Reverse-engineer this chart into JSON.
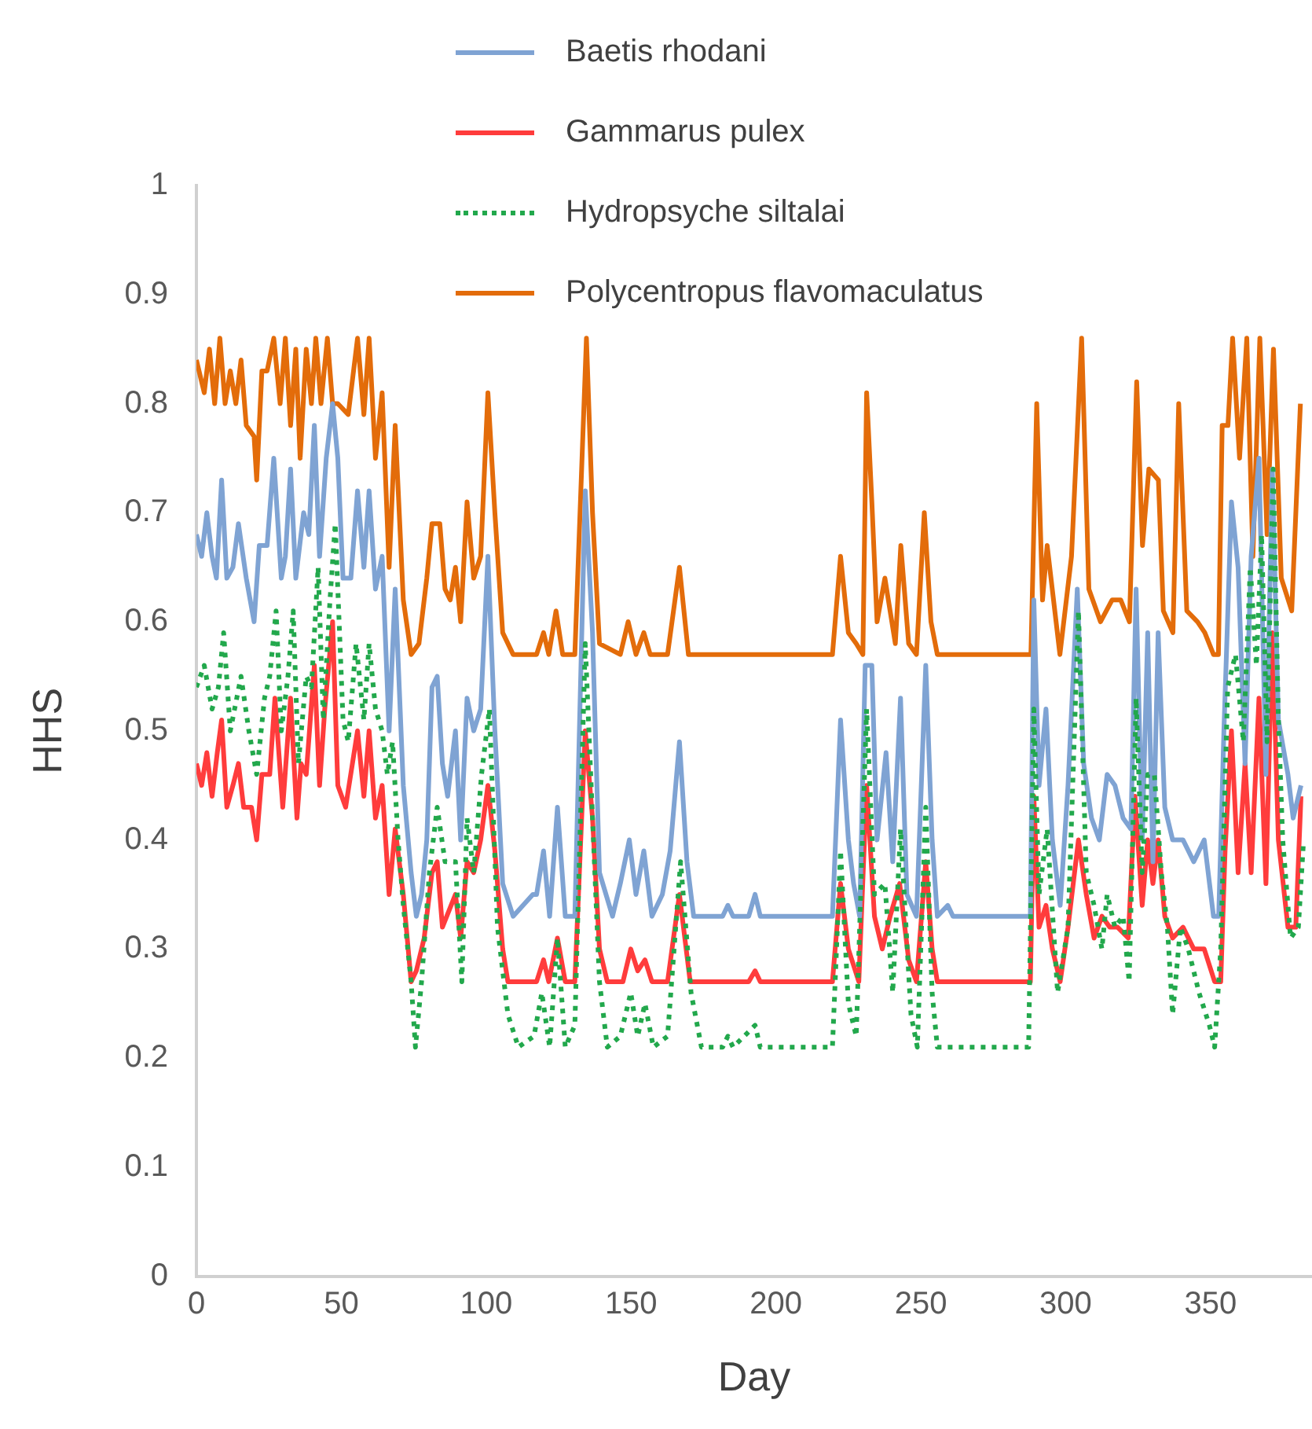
{
  "chart_data": {
    "type": "line",
    "xlabel": "Day",
    "ylabel": "HHS",
    "xlim": [
      0,
      385
    ],
    "xticks": [
      0,
      50,
      100,
      150,
      200,
      250,
      300,
      350
    ],
    "ylim": [
      0,
      1
    ],
    "yticks": [
      0,
      0.1,
      0.2,
      0.3,
      0.4,
      0.5,
      0.6,
      0.7,
      0.8,
      0.9,
      1
    ],
    "grid": false,
    "legend": "top",
    "marker": "none",
    "series": [
      {
        "name": "Baetis rhodani",
        "color": "#7fa3d3",
        "line_style": "solid",
        "x": [
          0,
          1.8,
          3.6,
          5.4,
          6.9,
          8.7,
          10.5,
          12.6,
          14.5,
          17.2,
          19.9,
          21.7,
          24.4,
          26.7,
          29.3,
          30.7,
          32.5,
          34.3,
          37,
          38.8,
          40.7,
          42.5,
          44.8,
          47,
          48.8,
          50.6,
          53.3,
          55.6,
          57.8,
          59.6,
          61.8,
          64.1,
          66.5,
          68.6,
          71.4,
          74.1,
          75.9,
          77.7,
          79.5,
          81.3,
          83.1,
          84.9,
          86.7,
          89.4,
          91.2,
          93.4,
          95.7,
          98.1,
          100.6,
          103,
          105.7,
          109.3,
          116.1,
          117.4,
          119.8,
          121.9,
          124.6,
          127.3,
          130.6,
          134.2,
          136.7,
          139.1,
          143.6,
          146.3,
          149.4,
          151.7,
          154.4,
          157.2,
          160.8,
          163.5,
          166.7,
          169.3,
          171.6,
          181.6,
          183.4,
          185.2,
          187,
          190.6,
          192.8,
          194.6,
          219.5,
          222.3,
          225,
          226.8,
          228.9,
          230.8,
          233.1,
          234.9,
          238,
          240.3,
          243,
          245.2,
          248.5,
          251.7,
          253.9,
          255.7,
          259.3,
          261.1,
          287.8,
          289,
          290.8,
          293.2,
          295.4,
          298.1,
          300.8,
          304,
          306.2,
          308.9,
          311.6,
          314.3,
          317,
          319.8,
          322.5,
          324.3,
          326.4,
          328.3,
          330.1,
          331.9,
          334.2,
          336.9,
          340.5,
          344.2,
          347.8,
          351,
          352.8,
          354.6,
          357.2,
          359.5,
          361.9,
          364,
          366.7,
          369.1,
          371.3,
          373.4,
          376.7,
          378.5,
          381.2
        ],
        "values": [
          0.68,
          0.66,
          0.7,
          0.66,
          0.64,
          0.73,
          0.64,
          0.65,
          0.69,
          0.64,
          0.6,
          0.67,
          0.67,
          0.75,
          0.64,
          0.66,
          0.74,
          0.64,
          0.7,
          0.68,
          0.78,
          0.66,
          0.75,
          0.8,
          0.75,
          0.64,
          0.64,
          0.72,
          0.65,
          0.72,
          0.63,
          0.66,
          0.5,
          0.63,
          0.45,
          0.37,
          0.33,
          0.35,
          0.4,
          0.54,
          0.55,
          0.47,
          0.44,
          0.5,
          0.4,
          0.53,
          0.5,
          0.52,
          0.66,
          0.5,
          0.36,
          0.33,
          0.35,
          0.35,
          0.39,
          0.33,
          0.43,
          0.33,
          0.33,
          0.72,
          0.59,
          0.37,
          0.33,
          0.36,
          0.4,
          0.35,
          0.39,
          0.33,
          0.35,
          0.39,
          0.49,
          0.38,
          0.33,
          0.33,
          0.34,
          0.33,
          0.33,
          0.33,
          0.35,
          0.33,
          0.33,
          0.51,
          0.4,
          0.36,
          0.33,
          0.56,
          0.56,
          0.4,
          0.48,
          0.38,
          0.53,
          0.35,
          0.33,
          0.56,
          0.4,
          0.33,
          0.34,
          0.33,
          0.33,
          0.62,
          0.45,
          0.52,
          0.4,
          0.34,
          0.45,
          0.63,
          0.47,
          0.42,
          0.4,
          0.46,
          0.45,
          0.42,
          0.41,
          0.63,
          0.4,
          0.59,
          0.38,
          0.59,
          0.43,
          0.4,
          0.4,
          0.38,
          0.4,
          0.33,
          0.33,
          0.5,
          0.71,
          0.65,
          0.47,
          0.66,
          0.75,
          0.46,
          0.74,
          0.51,
          0.46,
          0.42,
          0.45
        ]
      },
      {
        "name": "Gammarus pulex",
        "color": "#ff3c3c",
        "line_style": "solid",
        "x": [
          0,
          1.8,
          3.6,
          5.4,
          7.2,
          8.7,
          10.5,
          12.6,
          14.5,
          16.3,
          19,
          20.8,
          22.6,
          25.3,
          27.1,
          29.8,
          32.5,
          34.7,
          36.1,
          37.9,
          40.7,
          42.5,
          44.3,
          47,
          48.8,
          51.5,
          55.6,
          57.8,
          59.6,
          61.8,
          64.1,
          66.5,
          68.6,
          71.4,
          74.1,
          75.9,
          78.6,
          81.3,
          83.1,
          84.9,
          89.4,
          91.2,
          93.4,
          95.7,
          98.1,
          100.6,
          103,
          105.7,
          107.5,
          117.4,
          119.8,
          121.6,
          124.6,
          127.3,
          130.6,
          134.2,
          136.7,
          139.1,
          141.8,
          147.2,
          149.9,
          152.3,
          154.8,
          157.2,
          162.6,
          166.7,
          170.4,
          187,
          190.6,
          192.8,
          194.6,
          219.5,
          222.3,
          225,
          228.6,
          231.3,
          234,
          236.7,
          239.4,
          242.7,
          245.8,
          248.5,
          251.7,
          253.9,
          255.7,
          287.8,
          289,
          290.8,
          293.2,
          295.4,
          298.1,
          300.8,
          304.4,
          307.1,
          309.8,
          312.5,
          315.2,
          317.9,
          321.6,
          323.9,
          326.4,
          328.3,
          330.1,
          331.9,
          334.2,
          336.9,
          340.5,
          344.2,
          347.8,
          351.4,
          353.5,
          355,
          357.2,
          359.5,
          361.9,
          364,
          366.7,
          369.1,
          371.3,
          373.4,
          376.7,
          379.4,
          381.2
        ],
        "values": [
          0.47,
          0.45,
          0.48,
          0.44,
          0.48,
          0.51,
          0.43,
          0.45,
          0.47,
          0.43,
          0.43,
          0.4,
          0.46,
          0.46,
          0.53,
          0.43,
          0.53,
          0.42,
          0.47,
          0.46,
          0.56,
          0.45,
          0.52,
          0.6,
          0.45,
          0.43,
          0.5,
          0.44,
          0.5,
          0.42,
          0.45,
          0.35,
          0.41,
          0.35,
          0.27,
          0.28,
          0.31,
          0.37,
          0.38,
          0.32,
          0.35,
          0.31,
          0.38,
          0.37,
          0.4,
          0.45,
          0.39,
          0.3,
          0.27,
          0.27,
          0.29,
          0.27,
          0.31,
          0.27,
          0.27,
          0.5,
          0.42,
          0.3,
          0.27,
          0.27,
          0.3,
          0.28,
          0.29,
          0.27,
          0.27,
          0.35,
          0.27,
          0.27,
          0.27,
          0.28,
          0.27,
          0.27,
          0.36,
          0.3,
          0.27,
          0.45,
          0.33,
          0.3,
          0.33,
          0.36,
          0.29,
          0.27,
          0.38,
          0.3,
          0.27,
          0.27,
          0.44,
          0.32,
          0.34,
          0.3,
          0.27,
          0.32,
          0.4,
          0.35,
          0.31,
          0.33,
          0.32,
          0.32,
          0.31,
          0.44,
          0.34,
          0.4,
          0.36,
          0.4,
          0.33,
          0.31,
          0.32,
          0.3,
          0.3,
          0.27,
          0.27,
          0.39,
          0.5,
          0.37,
          0.47,
          0.37,
          0.53,
          0.36,
          0.59,
          0.4,
          0.32,
          0.32,
          0.44
        ]
      },
      {
        "name": "Hydropsyche siltalai",
        "color": "#22a84c",
        "line_style": "dotted",
        "x": [
          0,
          2.7,
          5.4,
          7.6,
          9.4,
          11.7,
          15.4,
          18.1,
          20.8,
          23.5,
          25.3,
          27.5,
          29.3,
          31.6,
          33.4,
          35.2,
          37.9,
          39.7,
          42,
          43.8,
          46.1,
          47.9,
          50.6,
          52.4,
          55.1,
          57.8,
          59.6,
          61.8,
          64.1,
          65.9,
          67.7,
          69.6,
          71.4,
          74.1,
          75.6,
          77.7,
          80.4,
          83.1,
          85.8,
          89.4,
          91.6,
          93.4,
          95.7,
          98.4,
          101.1,
          103.9,
          107.5,
          111.1,
          116.5,
          119.2,
          121.9,
          124.6,
          127.3,
          130.6,
          134.2,
          136.7,
          139.1,
          141.8,
          146.3,
          149.9,
          152.3,
          154.8,
          157.7,
          162.6,
          167.1,
          170.7,
          174.3,
          181.6,
          183.4,
          185.2,
          192.8,
          194.6,
          219.5,
          222.3,
          225,
          227.7,
          231.3,
          234,
          237.6,
          240.3,
          243,
          246.6,
          248.8,
          251.7,
          253.9,
          255.7,
          287.2,
          289,
          290.8,
          293.6,
          297.2,
          300.8,
          304.4,
          307.1,
          309.8,
          312.5,
          314.3,
          317,
          319.8,
          321.9,
          324.3,
          326.4,
          328.3,
          330.6,
          333,
          335.1,
          336.9,
          339.6,
          342.3,
          346,
          349.6,
          351.4,
          353.5,
          355.9,
          358.6,
          361.3,
          363.7,
          365.8,
          367.6,
          369.5,
          371.6,
          373.4,
          374.9,
          377.6,
          380.3,
          382.1
        ],
        "values": [
          0.54,
          0.56,
          0.52,
          0.54,
          0.59,
          0.5,
          0.55,
          0.5,
          0.46,
          0.53,
          0.55,
          0.61,
          0.5,
          0.55,
          0.61,
          0.47,
          0.55,
          0.54,
          0.65,
          0.51,
          0.62,
          0.69,
          0.51,
          0.49,
          0.58,
          0.51,
          0.58,
          0.52,
          0.5,
          0.46,
          0.49,
          0.4,
          0.34,
          0.27,
          0.21,
          0.27,
          0.37,
          0.43,
          0.38,
          0.38,
          0.27,
          0.42,
          0.37,
          0.46,
          0.52,
          0.32,
          0.24,
          0.21,
          0.22,
          0.26,
          0.21,
          0.31,
          0.21,
          0.23,
          0.58,
          0.42,
          0.27,
          0.21,
          0.22,
          0.26,
          0.22,
          0.25,
          0.21,
          0.22,
          0.38,
          0.26,
          0.21,
          0.21,
          0.22,
          0.21,
          0.23,
          0.21,
          0.21,
          0.39,
          0.25,
          0.22,
          0.52,
          0.35,
          0.36,
          0.26,
          0.41,
          0.24,
          0.21,
          0.43,
          0.26,
          0.21,
          0.21,
          0.52,
          0.35,
          0.41,
          0.26,
          0.32,
          0.61,
          0.37,
          0.34,
          0.3,
          0.35,
          0.32,
          0.33,
          0.27,
          0.53,
          0.37,
          0.46,
          0.46,
          0.37,
          0.32,
          0.24,
          0.32,
          0.3,
          0.26,
          0.23,
          0.21,
          0.3,
          0.54,
          0.57,
          0.49,
          0.65,
          0.56,
          0.68,
          0.49,
          0.74,
          0.51,
          0.4,
          0.31,
          0.32,
          0.4
        ]
      },
      {
        "name": "Polycentropus flavomaculatus",
        "color": "#e36c0a",
        "line_style": "solid",
        "x": [
          0,
          2.7,
          4.5,
          6.3,
          8.1,
          9.9,
          11.7,
          13.6,
          15.4,
          17.2,
          19.9,
          20.8,
          22.6,
          24.4,
          26.7,
          28.9,
          30.7,
          32.5,
          34.3,
          35.8,
          37.9,
          39.7,
          41.2,
          43,
          45.2,
          47,
          48.8,
          52.4,
          55.6,
          57.8,
          59.6,
          61.8,
          64.1,
          66.5,
          68.6,
          71.4,
          74.1,
          76.8,
          79.5,
          81.3,
          84,
          85.8,
          87.6,
          89.4,
          91.2,
          93.4,
          95.7,
          98.1,
          100.6,
          103,
          105.7,
          109.3,
          117.4,
          119.8,
          121.6,
          124.1,
          126.4,
          130.6,
          134.6,
          136.7,
          139.1,
          146.3,
          149,
          151.7,
          154.4,
          156.6,
          162.6,
          166.7,
          169.8,
          219.5,
          222.3,
          225,
          227.7,
          230,
          231.3,
          233.1,
          234.9,
          237.6,
          239.4,
          241.2,
          243.1,
          245.8,
          248.5,
          251.2,
          253.5,
          255.7,
          288,
          290,
          292,
          293.6,
          298,
          302,
          305.5,
          308,
          312,
          316,
          319,
          322,
          324.5,
          326.5,
          328.7,
          332,
          333.7,
          337,
          339,
          341.8,
          345.5,
          348,
          351,
          352.7,
          354,
          356,
          357.6,
          360,
          362.5,
          364.6,
          367,
          369.5,
          371.7,
          374.4,
          378,
          381
        ],
        "values": [
          0.84,
          0.81,
          0.85,
          0.8,
          0.86,
          0.8,
          0.83,
          0.8,
          0.84,
          0.78,
          0.77,
          0.73,
          0.83,
          0.83,
          0.86,
          0.8,
          0.86,
          0.78,
          0.85,
          0.75,
          0.85,
          0.8,
          0.86,
          0.8,
          0.86,
          0.8,
          0.8,
          0.79,
          0.86,
          0.79,
          0.86,
          0.75,
          0.81,
          0.65,
          0.78,
          0.62,
          0.57,
          0.58,
          0.64,
          0.69,
          0.69,
          0.63,
          0.62,
          0.65,
          0.6,
          0.71,
          0.64,
          0.66,
          0.81,
          0.7,
          0.59,
          0.57,
          0.57,
          0.59,
          0.57,
          0.61,
          0.57,
          0.57,
          0.86,
          0.7,
          0.58,
          0.57,
          0.6,
          0.57,
          0.59,
          0.57,
          0.57,
          0.65,
          0.57,
          0.57,
          0.66,
          0.59,
          0.58,
          0.57,
          0.81,
          0.71,
          0.6,
          0.64,
          0.61,
          0.58,
          0.67,
          0.58,
          0.57,
          0.7,
          0.6,
          0.57,
          0.57,
          0.8,
          0.62,
          0.67,
          0.57,
          0.66,
          0.86,
          0.63,
          0.6,
          0.62,
          0.62,
          0.6,
          0.82,
          0.67,
          0.74,
          0.73,
          0.61,
          0.59,
          0.8,
          0.61,
          0.6,
          0.59,
          0.57,
          0.57,
          0.78,
          0.78,
          0.86,
          0.75,
          0.86,
          0.66,
          0.86,
          0.68,
          0.85,
          0.64,
          0.61,
          0.8
        ]
      }
    ]
  }
}
